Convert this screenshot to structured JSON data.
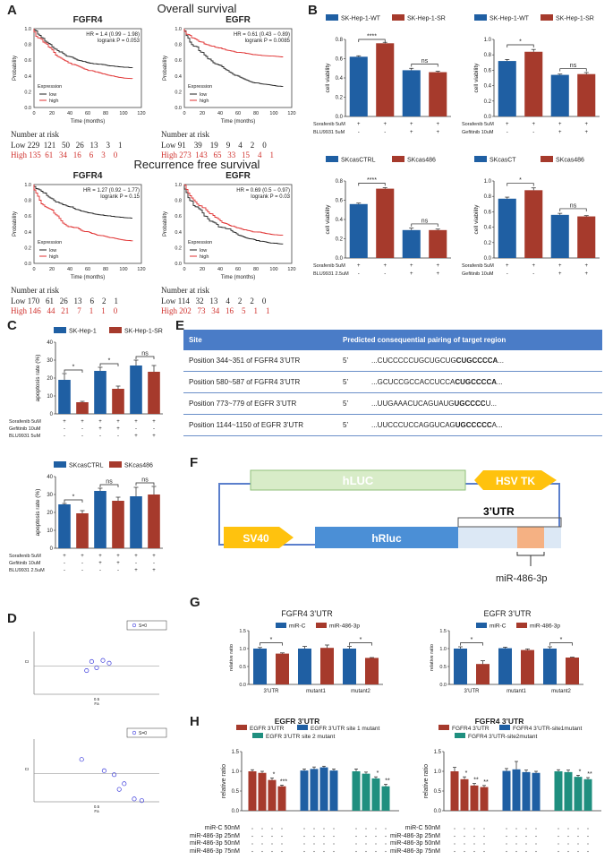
{
  "panels": {
    "A": "A",
    "B": "B",
    "C": "C",
    "D": "D",
    "E": "E",
    "F": "F",
    "G": "G",
    "H": "H"
  },
  "colors": {
    "blue": "#1f5fa3",
    "red": "#a63a2c",
    "teal": "#1f8f7f",
    "km_low": "#222222",
    "km_high": "#e03030"
  },
  "panelA": {
    "overall_title": "Overall survival",
    "recurrence_title": "Recurrence free survival",
    "ylabel": "Probability",
    "xlabel": "Time (months)",
    "legend_title": "Expression",
    "legend_low": "low",
    "legend_high": "high",
    "risk_title": "Number at risk",
    "plots": [
      {
        "gene": "FGFR4",
        "hr": "HR = 1.4 (0.99 − 1.98)",
        "logrank": "logrank P = 0.053",
        "xticks": [
          "0",
          "20",
          "40",
          "60",
          "80",
          "100",
          "120"
        ],
        "low_row": "Low 229  121   50   26   13    3    1",
        "high_row": "High 135  61   34   16    6    3    0"
      },
      {
        "gene": "EGFR",
        "hr": "HR = 0.61 (0.43 − 0.89)",
        "logrank": "logrank P = 0.0085",
        "xticks": [
          "0",
          "20",
          "40",
          "60",
          "80",
          "100",
          "120"
        ],
        "low_row": "Low 91    39    19    9    4    2    0",
        "high_row": "High 273  143   65   33   15    4    1"
      },
      {
        "gene": "FGFR4",
        "hr": "HR = 1.27 (0.92 − 1.77)",
        "logrank": "logrank P = 0.15",
        "xticks": [
          "0",
          "20",
          "40",
          "60",
          "80",
          "100",
          "120"
        ],
        "low_row": "Low 170   61   26   13    6    2    1",
        "high_row": "High 146   44   21    7    1    1    0"
      },
      {
        "gene": "EGFR",
        "hr": "HR = 0.69 (0.5 − 0.97)",
        "logrank": "logrank P = 0.03",
        "xticks": [
          "0",
          "20",
          "40",
          "60",
          "80",
          "100",
          "120"
        ],
        "low_row": "Low 114   32   13    4    2    2    0",
        "high_row": "High 202   73   34   16    5    1    1"
      }
    ],
    "yticks": [
      "0.0",
      "0.2",
      "0.4",
      "0.6",
      "0.8",
      "1.0"
    ]
  },
  "panelB": {
    "ylabel": "cell viability",
    "charts": [
      {
        "legend": [
          "SK-Hep-1-WT",
          "SK-Hep-1-SR"
        ],
        "values": [
          0.62,
          0.76,
          0.48,
          0.46
        ],
        "errors": [
          0.01,
          0.01,
          0.02,
          0.01
        ],
        "ylim": [
          0,
          0.8
        ],
        "yticks": [
          "0.0",
          "0.2",
          "0.4",
          "0.6",
          "0.8"
        ],
        "sig": [
          "****",
          "ns"
        ],
        "row1_label": "Sorafenib 5uM",
        "row1": [
          "+",
          "+",
          "+",
          "+"
        ],
        "row2_label": "BLU9931 5uM",
        "row2": [
          "-",
          "-",
          "+",
          "+"
        ]
      },
      {
        "legend": [
          "SK-Hep-1-WT",
          "SK-Hep-1-SR"
        ],
        "values": [
          0.72,
          0.84,
          0.54,
          0.55
        ],
        "errors": [
          0.02,
          0.03,
          0.01,
          0.02
        ],
        "ylim": [
          0,
          1.0
        ],
        "yticks": [
          "0.0",
          "0.2",
          "0.4",
          "0.6",
          "0.8",
          "1.0"
        ],
        "sig": [
          "*",
          "ns"
        ],
        "row1_label": "Sorafenib 5uM",
        "row1": [
          "+",
          "+",
          "+",
          "+"
        ],
        "row2_label": "Gefitinib  10uM",
        "row2": [
          "-",
          "-",
          "+",
          "+"
        ]
      },
      {
        "legend": [
          "SKcasCTRL",
          "SKcas486"
        ],
        "values": [
          0.56,
          0.72,
          0.29,
          0.29
        ],
        "errors": [
          0.01,
          0.01,
          0.02,
          0.01
        ],
        "ylim": [
          0,
          0.8
        ],
        "yticks": [
          "0.0",
          "0.2",
          "0.4",
          "0.6",
          "0.8"
        ],
        "sig": [
          "****",
          "ns"
        ],
        "row1_label": "Sorafenib 5uM",
        "row1": [
          "+",
          "+",
          "+",
          "+"
        ],
        "row2_label": "BLU9931 2.5uM",
        "row2": [
          "-",
          "-",
          "+",
          "+"
        ]
      },
      {
        "legend": [
          "SKcasCT",
          "SKcas486"
        ],
        "values": [
          0.77,
          0.88,
          0.56,
          0.54
        ],
        "errors": [
          0.02,
          0.03,
          0.02,
          0.01
        ],
        "ylim": [
          0,
          1.0
        ],
        "yticks": [
          "0.0",
          "0.2",
          "0.4",
          "0.6",
          "0.8",
          "1.0"
        ],
        "sig": [
          "*",
          "ns"
        ],
        "row1_label": "Sorafenib 5uM",
        "row1": [
          "+",
          "+",
          "+",
          "+"
        ],
        "row2_label": "Gefitinib  10uM",
        "row2": [
          "-",
          "-",
          "+",
          "+"
        ]
      }
    ]
  },
  "panelC": {
    "ylabel": "apoptosis rate (%)",
    "charts": [
      {
        "legend": [
          "SK-Hep-1",
          "SK-Hep-1-SR"
        ],
        "values": [
          19,
          6.5,
          24,
          14,
          27,
          23.5
        ],
        "errors": [
          3.5,
          0.5,
          2,
          1.5,
          3,
          3.5
        ],
        "ylim": [
          0,
          40
        ],
        "yticks": [
          "0",
          "10",
          "20",
          "30",
          "40"
        ],
        "sig": [
          "*",
          "*",
          "ns"
        ],
        "rows": [
          {
            "label": "Sorafenib 5uM",
            "vals": [
              "+",
              "+",
              "+",
              "+",
              "+",
              "+"
            ]
          },
          {
            "label": "Gefitinib  10uM",
            "vals": [
              "-",
              "-",
              "+",
              "+",
              "-",
              "-"
            ]
          },
          {
            "label": "BLU9931  5uM",
            "vals": [
              "-",
              "-",
              "-",
              "-",
              "+",
              "+"
            ]
          }
        ]
      },
      {
        "legend": [
          "SKcasCTRL",
          "SKcas486"
        ],
        "values": [
          24.5,
          19.5,
          32,
          26.5,
          29,
          30
        ],
        "errors": [
          0.5,
          1.5,
          1.5,
          2,
          5,
          4.5
        ],
        "ylim": [
          0,
          40
        ],
        "yticks": [
          "0",
          "10",
          "20",
          "30",
          "40"
        ],
        "sig": [
          "*",
          "ns",
          "ns"
        ],
        "rows": [
          {
            "label": "Sorafenib 5uM",
            "vals": [
              "+",
              "+",
              "+",
              "+",
              "+",
              "+"
            ]
          },
          {
            "label": "Gefitinib  10uM",
            "vals": [
              "-",
              "-",
              "+",
              "+",
              "-",
              "-"
            ]
          },
          {
            "label": "BLU9931 2.5uM",
            "vals": [
              "-",
              "-",
              "-",
              "-",
              "+",
              "+"
            ]
          }
        ]
      }
    ]
  },
  "panelD": {
    "plots": [
      {
        "legend": "S=0",
        "ylabel": "CI",
        "xlabel": "Fa",
        "xtick": "0.5",
        "points": [
          [
            0.42,
            0.92
          ],
          [
            0.46,
            1.08
          ],
          [
            0.5,
            0.97
          ],
          [
            0.55,
            1.1
          ],
          [
            0.6,
            1.05
          ]
        ]
      },
      {
        "legend": "S=0",
        "ylabel": "CI",
        "xlabel": "Fa",
        "xtick": "0.5",
        "points": [
          [
            0.38,
            1.25
          ],
          [
            0.56,
            1.05
          ],
          [
            0.64,
            0.98
          ],
          [
            0.68,
            0.72
          ],
          [
            0.72,
            0.82
          ],
          [
            0.8,
            0.55
          ],
          [
            0.86,
            0.52
          ]
        ]
      }
    ]
  },
  "panelE": {
    "header_site": "Site",
    "header_pairing": "Predicted consequential pairing of target region",
    "rows": [
      {
        "site": "Position 344~351 of FGFR4 3’UTR",
        "prime": "5’",
        "seq": "...CUCCCCCUGCUGCUG",
        "bold": "CUGCCCCA",
        "tail": "..."
      },
      {
        "site": "Position 580~587 of FGFR4 3’UTR",
        "prime": "5’",
        "seq": "...GCUCCGCCACCUCCA",
        "bold": "CUGCCCCA",
        "tail": "..."
      },
      {
        "site": "Position 773~779 of EGFR 3’UTR",
        "prime": "5’",
        "seq": "...UUGAAACUCAGUAUG",
        "bold": "UGCCCC",
        "tail": "U..."
      },
      {
        "site": "Position 1144~1150 of EGFR 3’UTR",
        "prime": "5’",
        "seq": "...UUCCCUCCAGGUCAG",
        "bold": "UGCCCCC",
        "tail": "A..."
      }
    ]
  },
  "panelF": {
    "hluc": "hLUC",
    "hsvtk": "HSV TK",
    "sv40": "SV40",
    "hrluc": "hRluc",
    "utr": "3’UTR",
    "mirna": "miR-486-3p"
  },
  "panelG": {
    "ylabel": "relative ratio",
    "charts": [
      {
        "title": "FGFR4 3’UTR",
        "legend": [
          "miR-C",
          "miR-486-3p"
        ],
        "categories": [
          "3’UTR",
          "mutant1",
          "mutant2"
        ],
        "values": [
          1.0,
          0.86,
          1.0,
          1.02,
          1.0,
          0.74
        ],
        "errors": [
          0.03,
          0.02,
          0.06,
          0.08,
          0.06,
          0.01
        ],
        "ylim": [
          0,
          1.5
        ],
        "yticks": [
          "0.0",
          "0.5",
          "1.0",
          "1.5"
        ],
        "sig": [
          "*",
          "",
          "*"
        ]
      },
      {
        "title": "EGFR 3’UTR",
        "legend": [
          "miR-C",
          "miR-486-3p"
        ],
        "categories": [
          "3’UTR",
          "mutant1",
          "mutant2"
        ],
        "values": [
          1.0,
          0.57,
          1.01,
          0.96,
          1.0,
          0.75
        ],
        "errors": [
          0.05,
          0.09,
          0.03,
          0.03,
          0.05,
          0.01
        ],
        "ylim": [
          0,
          1.5
        ],
        "yticks": [
          "0.0",
          "0.5",
          "1.0",
          "1.5"
        ],
        "sig": [
          "*",
          "",
          "*"
        ]
      }
    ]
  },
  "panelH": {
    "ylabel": "relative ratio",
    "row_labels": [
      "miR-C 50nM",
      "miR-486-3p 25nM",
      "miR-486-3p 50nM",
      "miR-486-3p 75nM"
    ],
    "charts": [
      {
        "title": "EGFR 3’UTR",
        "legend": [
          "EGFR 3’UTR",
          "EGFR 3’UTR site 1 mutant",
          "EGFR 3’UTR site 2 mutant"
        ],
        "values": [
          [
            1.0,
            0.96,
            0.78,
            0.62
          ],
          [
            1.02,
            1.06,
            1.1,
            1.02
          ],
          [
            1.0,
            0.94,
            0.82,
            0.62
          ]
        ],
        "errors": [
          [
            0.04,
            0.04,
            0.05,
            0.03
          ],
          [
            0.04,
            0.05,
            0.03,
            0.04
          ],
          [
            0.06,
            0.04,
            0.04,
            0.05
          ]
        ],
        "sig": [
          [
            "",
            "",
            "*",
            "***"
          ],
          [
            "",
            "",
            "",
            ""
          ],
          [
            "",
            "",
            "*",
            "**"
          ]
        ],
        "ylim": [
          0,
          1.5
        ],
        "yticks": [
          "0.0",
          "0.5",
          "1.0",
          "1.5"
        ]
      },
      {
        "title": "FGFR4 3’UTR",
        "legend": [
          "FGFR4 3’UTR",
          "FGFR4 3’UTR-site1mutant",
          "FGFR4 3’UTR-site2mutant"
        ],
        "values": [
          [
            1.0,
            0.8,
            0.64,
            0.6
          ],
          [
            1.01,
            1.05,
            0.98,
            0.96
          ],
          [
            1.0,
            0.98,
            0.86,
            0.8
          ]
        ],
        "errors": [
          [
            0.1,
            0.06,
            0.05,
            0.04
          ],
          [
            0.06,
            0.2,
            0.05,
            0.04
          ],
          [
            0.04,
            0.05,
            0.04,
            0.04
          ]
        ],
        "sig": [
          [
            "",
            "*",
            "**",
            "**"
          ],
          [
            "",
            "",
            "",
            ""
          ],
          [
            "",
            "",
            "*",
            "**"
          ]
        ],
        "ylim": [
          0,
          1.5
        ],
        "yticks": [
          "0.0",
          "0.5",
          "1.0",
          "1.5"
        ]
      }
    ]
  }
}
